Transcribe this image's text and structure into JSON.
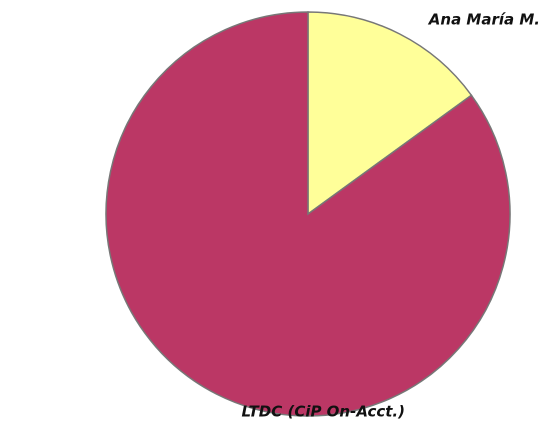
{
  "chart_data": {
    "type": "pie",
    "categories": [
      "Ana María M.",
      "LTDC (CiP On-Acct.)"
    ],
    "values": [
      15,
      85
    ],
    "colors": [
      "#ffff99",
      "#bb3765"
    ]
  }
}
